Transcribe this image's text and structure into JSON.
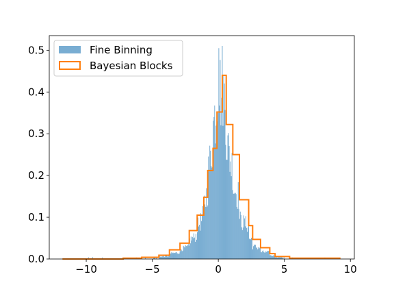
{
  "chart_data": {
    "type": "bar",
    "title": "",
    "xlabel": "",
    "ylabel": "",
    "xlim": [
      -12.8,
      10.3
    ],
    "ylim": [
      0,
      0.535
    ],
    "grid": false,
    "legend_placement": "upper-left",
    "xticks": [
      -10,
      -5,
      0,
      5,
      10
    ],
    "xtick_labels": [
      "−10",
      "−5",
      "0",
      "5",
      "10"
    ],
    "yticks": [
      0.0,
      0.1,
      0.2,
      0.3,
      0.4,
      0.5
    ],
    "ytick_labels": [
      "0.0",
      "0.1",
      "0.2",
      "0.3",
      "0.4",
      "0.5"
    ],
    "series": [
      {
        "name": "Fine Binning",
        "kind": "histogram",
        "color": "#1f77b4",
        "opacity": 0.6,
        "x_range": [
          -11.8,
          9.2
        ],
        "peak_density": 0.505,
        "distribution_shape": "heavy-tailed, centered near 0"
      },
      {
        "name": "Bayesian Blocks",
        "kind": "step",
        "color": "#ff7f0e",
        "edges": [
          -11.8,
          -7.2,
          -5.8,
          -4.5,
          -3.7,
          -2.9,
          -2.2,
          -1.6,
          -1.1,
          -0.8,
          -0.4,
          -0.1,
          0.3,
          0.6,
          1.1,
          1.6,
          2.3,
          2.6,
          3.2,
          3.9,
          4.3,
          5.4,
          9.2
        ],
        "heights": [
          0.0,
          0.002,
          0.004,
          0.009,
          0.022,
          0.038,
          0.068,
          0.105,
          0.148,
          0.212,
          0.265,
          0.352,
          0.44,
          0.322,
          0.25,
          0.142,
          0.08,
          0.047,
          0.027,
          0.013,
          0.006,
          0.002
        ]
      }
    ]
  }
}
